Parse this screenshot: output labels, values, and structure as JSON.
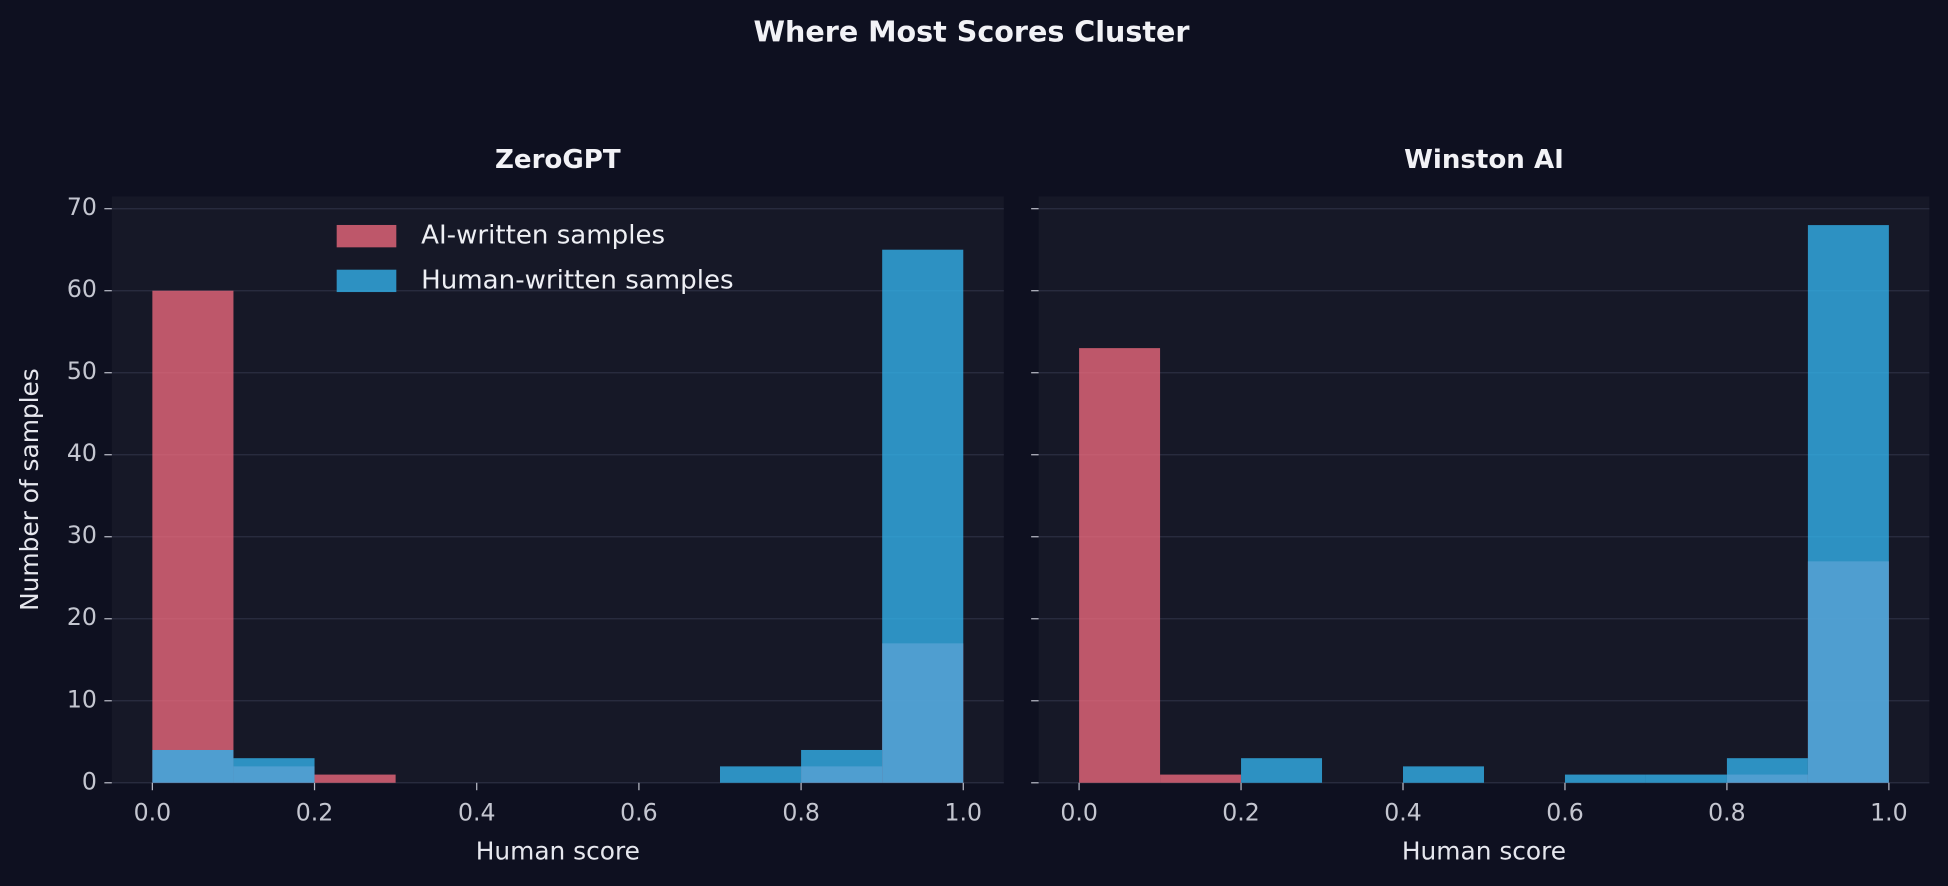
{
  "title": "Where Most Scores Cluster",
  "sharey": true,
  "chart_data": [
    {
      "type": "histogram",
      "title": "ZeroGPT",
      "xlabel": "Human score",
      "ylabel": "Number of samples",
      "bins": [
        0,
        0.1,
        0.2,
        0.3,
        0.4,
        0.5,
        0.6,
        0.7,
        0.8,
        0.9,
        1
      ],
      "series": [
        {
          "name": "AI-written samples",
          "color": "#e8687c",
          "values": [
            60,
            2,
            1,
            0,
            0,
            0,
            0,
            0,
            2,
            17
          ]
        },
        {
          "name": "Human-written samples",
          "color": "#33b0ea",
          "values": [
            4,
            3,
            0,
            0,
            0,
            0,
            0,
            2,
            4,
            65
          ]
        }
      ],
      "xlim": [
        -0.05,
        1.05
      ],
      "ylim": [
        0,
        71.5
      ],
      "xticks": [
        {
          "value": 0,
          "label": "0.0"
        },
        0.2,
        0.4,
        0.6,
        0.8,
        {
          "value": 1,
          "label": "1.0"
        }
      ],
      "yticks": [
        0,
        10,
        20,
        30,
        40,
        50,
        60,
        70
      ],
      "grid": true,
      "legend": "upper center"
    },
    {
      "type": "histogram",
      "title": "Winston AI",
      "xlabel": "Human score",
      "bins": [
        0,
        0.1,
        0.2,
        0.3,
        0.4,
        0.5,
        0.6,
        0.7,
        0.8,
        0.9,
        1
      ],
      "series": [
        {
          "name": "AI-written samples",
          "color": "#e8687c",
          "values": [
            53,
            1,
            0,
            0,
            0,
            0,
            0,
            0,
            1,
            27
          ]
        },
        {
          "name": "Human-written samples",
          "color": "#33b0ea",
          "values": [
            0,
            0,
            3,
            0,
            2,
            0,
            1,
            1,
            3,
            68
          ]
        }
      ],
      "xlim": [
        -0.05,
        1.05
      ],
      "ylim": [
        0,
        71.5
      ],
      "xticks": [
        {
          "value": 0,
          "label": "0.0"
        },
        0.2,
        0.4,
        0.6,
        0.8,
        {
          "value": 1,
          "label": "1.0"
        }
      ],
      "grid": true
    }
  ]
}
